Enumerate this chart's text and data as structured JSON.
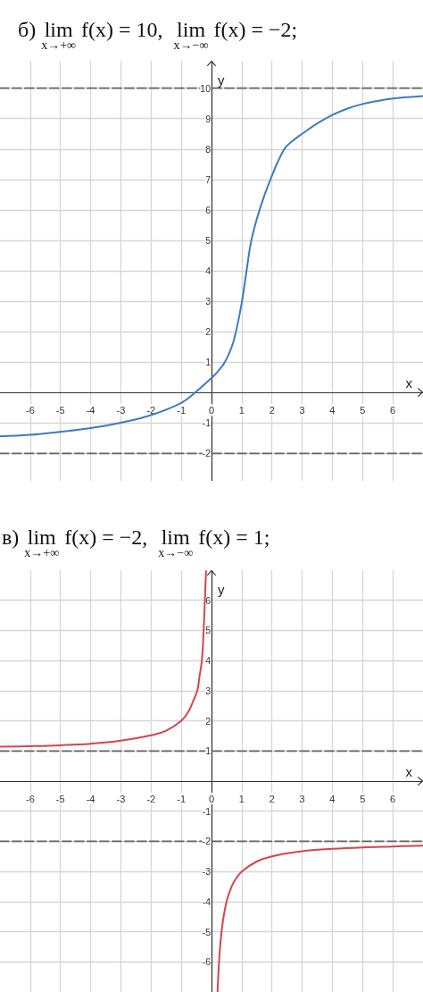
{
  "chart_data": [
    {
      "type": "line",
      "title": "б) lim$_{x→+∞}$ f(x) = 10,  lim$_{x→−∞}$ f(x) = −2;",
      "xlabel": "x",
      "ylabel": "y",
      "xlim": [
        -7,
        7
      ],
      "ylim": [
        -2.9,
        10.9
      ],
      "xticks": [
        -6,
        -5,
        -4,
        -3,
        -2,
        -1,
        0,
        1,
        2,
        3,
        4,
        5,
        6
      ],
      "yticks": [
        -2,
        -1,
        1,
        2,
        3,
        4,
        5,
        6,
        7,
        8,
        9,
        10
      ],
      "grid": true,
      "marker": "none",
      "series": [
        {
          "color": "#3d7cc0",
          "x": [
            -7,
            -6,
            -5,
            -4,
            -3,
            -2,
            -1,
            -0.54,
            0,
            0.2,
            0.44,
            0.67,
            0.81,
            1.01,
            1.16,
            1.32,
            1.59,
            1.95,
            2.41,
            2.7,
            3,
            3.5,
            4,
            4.5,
            5,
            5.5,
            6,
            7
          ],
          "values": [
            -1.44,
            -1.39,
            -1.29,
            -1.17,
            -0.99,
            -0.74,
            -0.34,
            0,
            0.48,
            0.68,
            1,
            1.5,
            2,
            3,
            4,
            5,
            6,
            7,
            8,
            8.28,
            8.5,
            8.84,
            9.12,
            9.33,
            9.48,
            9.58,
            9.66,
            9.74
          ]
        },
        {
          "color": "#666666",
          "line_style": "dashed",
          "x": [
            -7,
            7
          ],
          "values": [
            10,
            10
          ]
        },
        {
          "color": "#666666",
          "line_style": "dashed",
          "x": [
            -7,
            7
          ],
          "values": [
            -2,
            -2
          ]
        }
      ]
    },
    {
      "type": "line",
      "title": "в) lim$_{x→+∞}$ f(x) = −2,  lim$_{x→−∞}$ f(x) = 1;",
      "xlabel": "x",
      "ylabel": "y",
      "xlim": [
        -7,
        7
      ],
      "ylim": [
        -7,
        7
      ],
      "xticks": [
        -6,
        -5,
        -4,
        -3,
        -2,
        -1,
        0,
        1,
        2,
        3,
        4,
        5,
        6
      ],
      "yticks": [
        -6,
        -5,
        -4,
        -3,
        -2,
        -1,
        1,
        2,
        3,
        4,
        5,
        6
      ],
      "grid": true,
      "marker": "none",
      "series": [
        {
          "color": "#d8434e",
          "x": [
            -7,
            -6,
            -5,
            -4,
            -3,
            -2,
            -1.5,
            -1,
            -0.75,
            -0.6,
            -0.47,
            -0.4,
            -0.32,
            -0.26,
            -0.22,
            -0.18
          ],
          "values": [
            1.14,
            1.16,
            1.19,
            1.24,
            1.34,
            1.52,
            1.67,
            2,
            2.33,
            2.67,
            3,
            3.45,
            4,
            5,
            6,
            6.97
          ]
        },
        {
          "color": "#d8434e",
          "x": [
            0.2,
            0.22,
            0.25,
            0.28,
            0.33,
            0.4,
            0.5,
            0.6,
            0.75,
            1,
            1.5,
            2,
            3,
            4,
            5,
            6,
            7
          ],
          "values": [
            -7,
            -6.55,
            -6,
            -5.57,
            -5.03,
            -4.5,
            -4,
            -3.67,
            -3.33,
            -3,
            -2.67,
            -2.5,
            -2.33,
            -2.25,
            -2.2,
            -2.17,
            -2.14
          ]
        },
        {
          "color": "#666666",
          "line_style": "dashed",
          "x": [
            -7,
            7
          ],
          "values": [
            1,
            1
          ]
        },
        {
          "color": "#666666",
          "line_style": "dashed",
          "x": [
            -7,
            7
          ],
          "values": [
            -2,
            -2
          ]
        }
      ]
    }
  ]
}
